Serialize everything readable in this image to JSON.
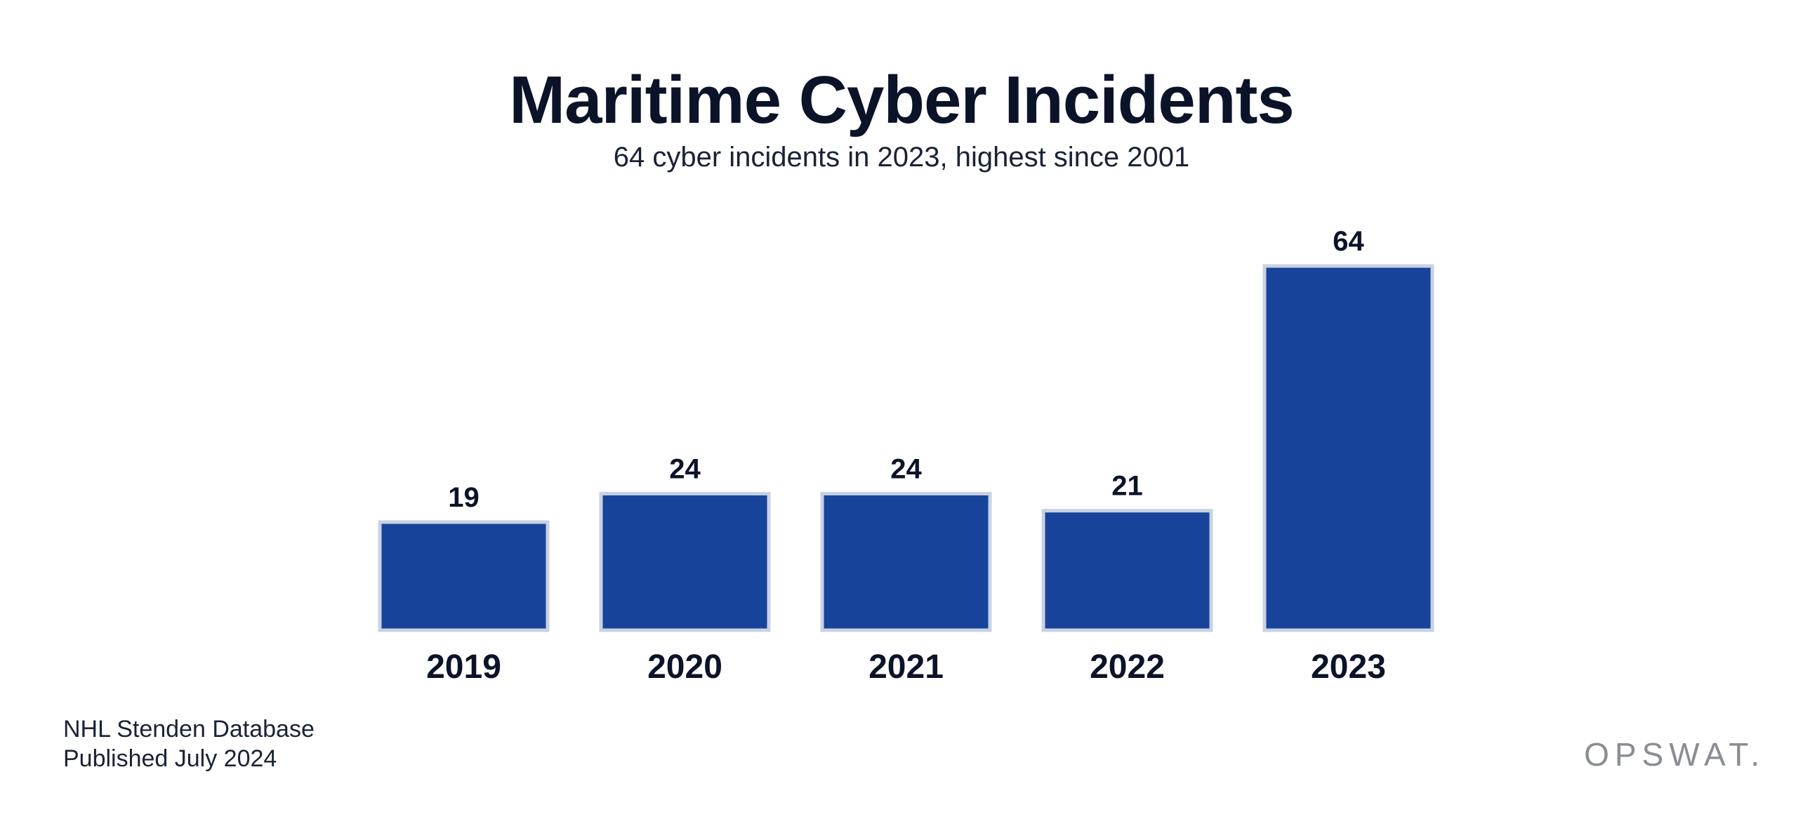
{
  "chart_data": {
    "type": "bar",
    "title": "Maritime Cyber Incidents",
    "subtitle": "64 cyber incidents in 2023, highest since 2001",
    "categories": [
      "2019",
      "2020",
      "2021",
      "2022",
      "2023"
    ],
    "values": [
      19,
      24,
      24,
      21,
      64
    ],
    "data_labels": [
      "19",
      "24",
      "24",
      "21",
      "64"
    ],
    "xlabel": "",
    "ylabel": "",
    "ylim": [
      0,
      64
    ],
    "grid": false,
    "legend": "none",
    "bar_color": "#17449a",
    "bar_border_color": "#c9d2e2"
  },
  "footer": {
    "source": "NHL Stenden Database",
    "published": "Published July 2024"
  },
  "logo": {
    "text": "OPSWAT."
  }
}
